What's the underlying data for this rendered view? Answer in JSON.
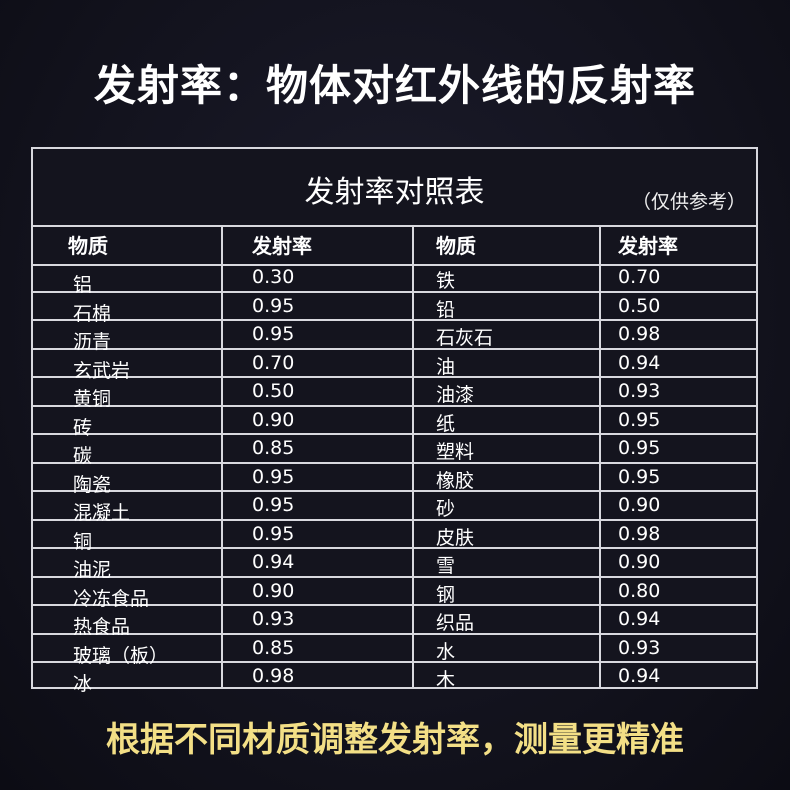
{
  "headline": "发射率：物体对红外线的反射率",
  "table": {
    "title": "发射率对照表",
    "note": "（仅供参考）",
    "headers": [
      "物质",
      "发射率",
      "物质",
      "发射率"
    ],
    "rows": [
      [
        "铝",
        "0.30",
        "铁",
        "0.70"
      ],
      [
        "石棉",
        "0.95",
        "铅",
        "0.50"
      ],
      [
        "沥青",
        "0.95",
        "石灰石",
        "0.98"
      ],
      [
        "玄武岩",
        "0.70",
        "油",
        "0.94"
      ],
      [
        "黄铜",
        "0.50",
        "油漆",
        "0.93"
      ],
      [
        "砖",
        "0.90",
        "纸",
        "0.95"
      ],
      [
        "碳",
        "0.85",
        "塑料",
        "0.95"
      ],
      [
        "陶瓷",
        "0.95",
        "橡胶",
        "0.95"
      ],
      [
        "混凝土",
        "0.95",
        "砂",
        "0.90"
      ],
      [
        "铜",
        "0.95",
        "皮肤",
        "0.98"
      ],
      [
        "油泥",
        "0.94",
        "雪",
        "0.90"
      ],
      [
        "冷冻食品",
        "0.90",
        "钢",
        "0.80"
      ],
      [
        " 热食品",
        "0.93",
        "织品",
        "0.94"
      ],
      [
        "玻璃（板）",
        "0.85",
        "水",
        "0.93"
      ],
      [
        "冰",
        "0.98",
        "木",
        "0.94"
      ]
    ]
  },
  "footer": "根据不同材质调整发射率，测量更精准",
  "colors": {
    "background": "#14141e",
    "footer_text": "#f3df86",
    "grid": "#d8d8de"
  }
}
